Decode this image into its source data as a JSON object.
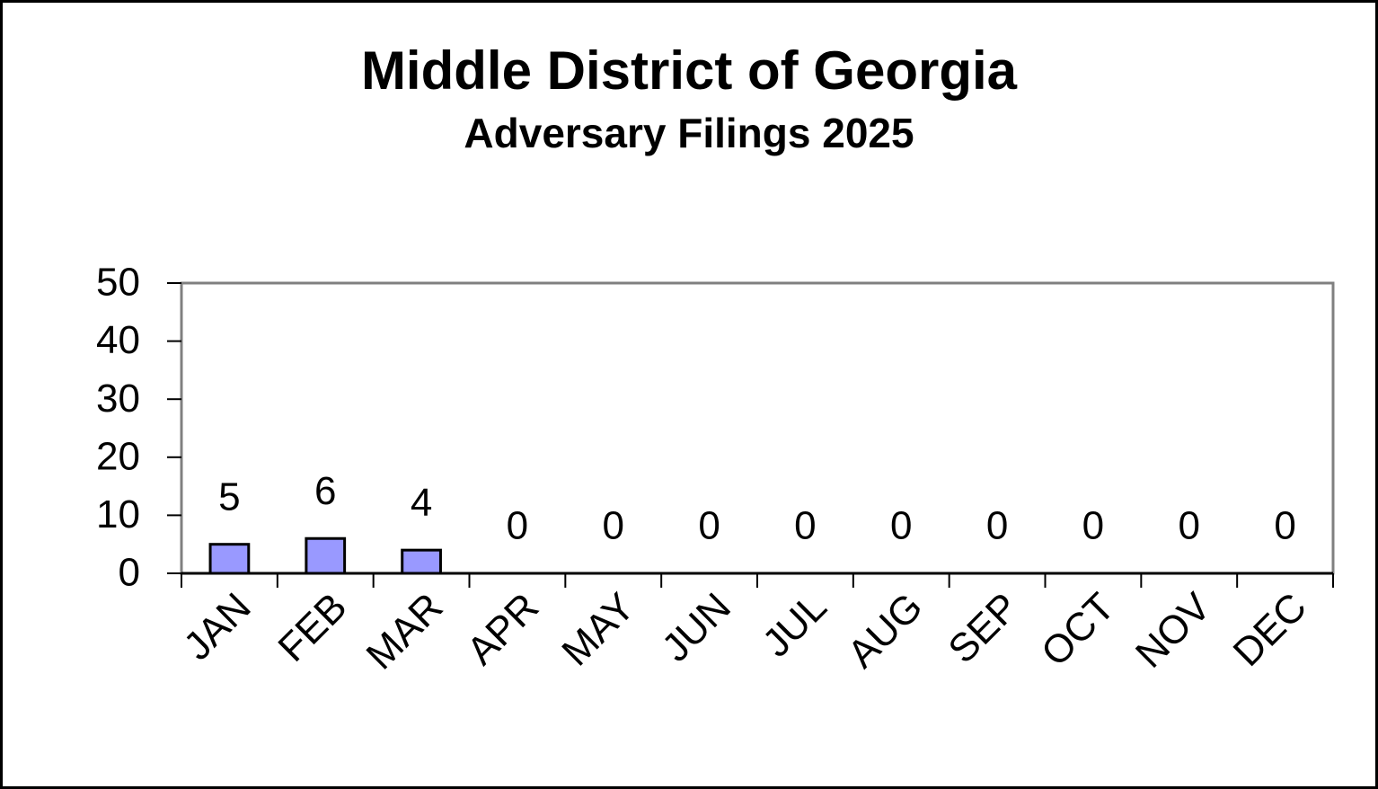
{
  "chart_data": {
    "type": "bar",
    "title": "Middle District of Georgia",
    "subtitle": "Adversary Filings 2025",
    "categories": [
      "JAN",
      "FEB",
      "MAR",
      "APR",
      "MAY",
      "JUN",
      "JUL",
      "AUG",
      "SEP",
      "OCT",
      "NOV",
      "DEC"
    ],
    "values": [
      5,
      6,
      4,
      0,
      0,
      0,
      0,
      0,
      0,
      0,
      0,
      0
    ],
    "color": "#9999ff",
    "ylim": [
      0,
      50
    ],
    "yticks": [
      0,
      10,
      20,
      30,
      40,
      50
    ],
    "grid": false,
    "data_labels": true
  }
}
